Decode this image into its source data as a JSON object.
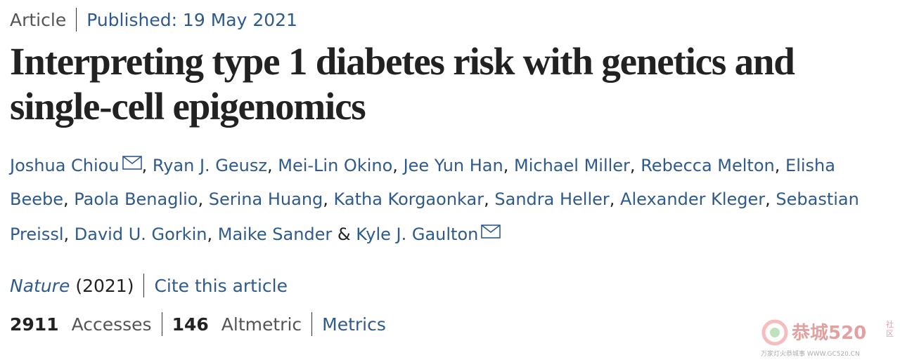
{
  "header": {
    "type": "Article",
    "published": "Published: 19 May 2021"
  },
  "title": "Interpreting type 1 diabetes risk with genetics and single-cell epigenomics",
  "authors": {
    "names": [
      {
        "name": "Joshua Chiou",
        "email": true
      },
      {
        "name": "Ryan J. Geusz",
        "email": false
      },
      {
        "name": "Mei-Lin Okino",
        "email": false
      },
      {
        "name": "Jee Yun Han",
        "email": false
      },
      {
        "name": "Michael Miller",
        "email": false
      },
      {
        "name": "Rebecca Melton",
        "email": false
      },
      {
        "name": "Elisha Beebe",
        "email": false
      },
      {
        "name": "Paola Benaglio",
        "email": false
      },
      {
        "name": "Serina Huang",
        "email": false
      },
      {
        "name": "Katha Korgaonkar",
        "email": false
      },
      {
        "name": "Sandra Heller",
        "email": false
      },
      {
        "name": "Alexander Kleger",
        "email": false
      },
      {
        "name": "Sebastian Preissl",
        "email": false
      },
      {
        "name": "David U. Gorkin",
        "email": false
      },
      {
        "name": "Maike Sander",
        "email": false
      },
      {
        "name": "Kyle J. Gaulton",
        "email": true
      }
    ],
    "separator": ",",
    "final_separator": "&"
  },
  "journal": {
    "name": "Nature",
    "year": "(2021)",
    "cite": "Cite this article"
  },
  "metrics": {
    "accesses": 2911,
    "accesses_label": "Accesses",
    "altmetric": 146,
    "altmetric_label": "Altmetric",
    "link": "Metrics"
  },
  "watermark": {
    "logo": "恭城520",
    "side": "社区",
    "tagline": "万家灯火恭城事 WWW.GC520.CN"
  }
}
